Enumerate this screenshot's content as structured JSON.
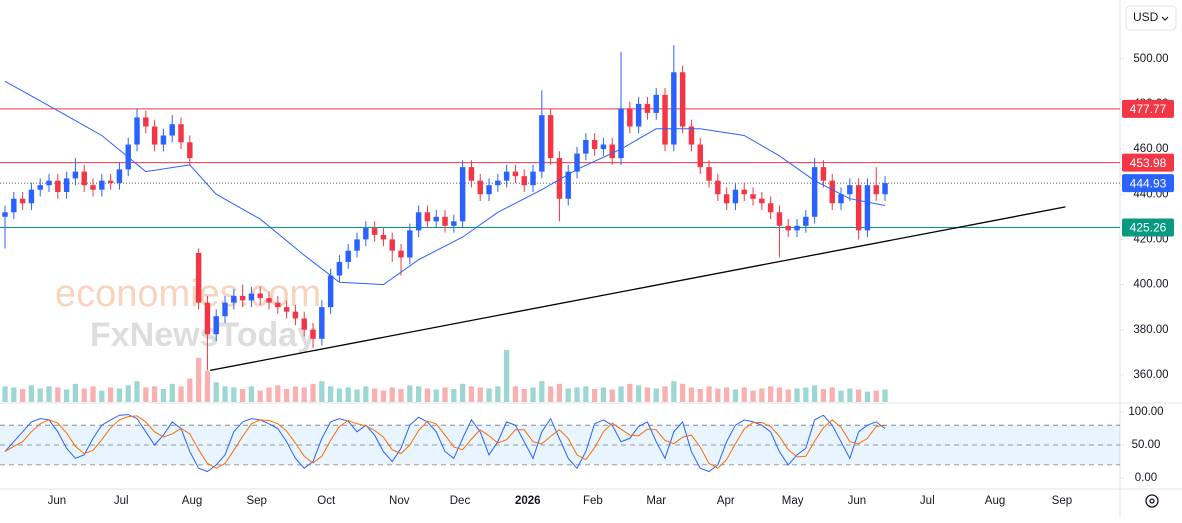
{
  "chart_data": {
    "type": "candlestick",
    "currency": "USD",
    "watermark": [
      "economies.com",
      "FxNewsToday"
    ],
    "colors": {
      "up": "#2962ff",
      "down": "#f23645"
    },
    "xlim": [
      -0.57,
      126.7
    ],
    "xticks": [
      {
        "value": 5.9,
        "label": "Jun"
      },
      {
        "value": 13.2,
        "label": "Jul"
      },
      {
        "value": 21.25,
        "label": "Aug"
      },
      {
        "value": 28.6,
        "label": "Sep"
      },
      {
        "value": 36.5,
        "label": "Oct"
      },
      {
        "value": 44.8,
        "label": "Nov"
      },
      {
        "value": 51.7,
        "label": "Dec"
      },
      {
        "value": 59.4,
        "label": "2026"
      },
      {
        "value": 66.8,
        "label": "Feb"
      },
      {
        "value": 74,
        "label": "Mar"
      },
      {
        "value": 81.9,
        "label": "Apr"
      },
      {
        "value": 89.5,
        "label": "May"
      },
      {
        "value": 96.8,
        "label": "Jun"
      },
      {
        "value": 104.8,
        "label": "Jul"
      },
      {
        "value": 112.5,
        "label": "Aug"
      },
      {
        "value": 120.1,
        "label": "Sep"
      }
    ],
    "ylim": [
      348,
      526
    ],
    "yticks": [
      {
        "value": 360,
        "label": "360.00"
      },
      {
        "value": 380,
        "label": "380.00"
      },
      {
        "value": 400,
        "label": "400.00"
      },
      {
        "value": 420,
        "label": "420.00"
      },
      {
        "value": 440,
        "label": "440.00"
      },
      {
        "value": 460,
        "label": "460.00"
      },
      {
        "value": 480,
        "label": "480.00"
      },
      {
        "value": 500,
        "label": "500.00"
      }
    ],
    "candles": {
      "open": [
        430,
        432,
        438,
        436,
        442,
        444,
        446,
        441,
        447,
        450,
        444,
        442,
        446,
        445,
        451,
        462,
        474,
        470,
        462,
        466,
        471,
        463,
        414,
        392,
        378,
        386,
        392,
        395,
        393,
        396,
        394,
        392,
        390,
        388,
        385,
        380,
        376,
        390,
        404,
        410,
        415,
        420,
        425,
        422,
        420,
        415,
        412,
        424,
        432,
        428,
        430,
        426,
        428,
        452,
        446,
        440,
        444,
        446,
        450,
        448,
        444,
        450,
        475,
        456,
        438,
        450,
        458,
        464,
        460,
        462,
        456,
        478,
        470,
        480,
        476,
        484,
        462,
        494,
        470,
        462,
        452,
        446,
        440,
        436,
        442,
        440,
        438,
        436,
        432,
        426,
        424,
        426,
        430,
        452,
        446,
        436,
        440,
        444,
        424,
        444,
        440
      ],
      "high": [
        435,
        441,
        441,
        445,
        447,
        449,
        449,
        450,
        456,
        453,
        447,
        449,
        449,
        454,
        465,
        478,
        477,
        473,
        469,
        475,
        474,
        466,
        416,
        395,
        389,
        395,
        398,
        400,
        399,
        399,
        397,
        395,
        393,
        391,
        388,
        383,
        393,
        407,
        413,
        418,
        423,
        428,
        428,
        425,
        423,
        418,
        427,
        435,
        435,
        433,
        433,
        431,
        455,
        455,
        449,
        447,
        449,
        453,
        453,
        451,
        453,
        486,
        478,
        459,
        453,
        461,
        467,
        467,
        465,
        465,
        503,
        481,
        483,
        483,
        487,
        487,
        506,
        497,
        473,
        465,
        455,
        449,
        443,
        445,
        445,
        443,
        441,
        439,
        435,
        429,
        429,
        433,
        456,
        455,
        449,
        443,
        447,
        447,
        447,
        452,
        448
      ],
      "low": [
        416,
        429,
        433,
        433,
        439,
        441,
        438,
        438,
        444,
        441,
        439,
        439,
        442,
        442,
        448,
        459,
        467,
        459,
        459,
        463,
        460,
        453,
        389,
        362,
        375,
        383,
        389,
        390,
        390,
        391,
        389,
        387,
        385,
        382,
        377,
        372,
        373,
        387,
        401,
        407,
        412,
        417,
        419,
        417,
        410,
        404,
        409,
        421,
        425,
        425,
        423,
        423,
        425,
        443,
        437,
        437,
        441,
        443,
        445,
        441,
        441,
        447,
        453,
        428,
        435,
        447,
        455,
        457,
        457,
        453,
        453,
        467,
        467,
        473,
        473,
        459,
        459,
        467,
        459,
        449,
        443,
        437,
        433,
        433,
        437,
        435,
        433,
        429,
        412,
        421,
        421,
        423,
        427,
        443,
        433,
        433,
        437,
        420,
        421,
        437,
        437
      ],
      "close": [
        432,
        438,
        436,
        442,
        444,
        446,
        441,
        447,
        450,
        444,
        442,
        446,
        445,
        451,
        462,
        474,
        470,
        462,
        466,
        471,
        463,
        456,
        392,
        378,
        386,
        392,
        395,
        393,
        396,
        394,
        392,
        390,
        388,
        385,
        380,
        376,
        390,
        404,
        410,
        415,
        420,
        425,
        422,
        420,
        415,
        412,
        424,
        432,
        428,
        430,
        426,
        428,
        452,
        446,
        440,
        444,
        446,
        450,
        448,
        444,
        450,
        475,
        456,
        438,
        450,
        458,
        464,
        460,
        462,
        456,
        478,
        470,
        480,
        476,
        484,
        462,
        494,
        470,
        462,
        452,
        446,
        440,
        436,
        442,
        440,
        438,
        436,
        432,
        426,
        424,
        426,
        430,
        452,
        446,
        436,
        440,
        444,
        424,
        444,
        440,
        444.93
      ]
    },
    "volume": [
      30,
      28,
      25,
      32,
      26,
      30,
      28,
      24,
      35,
      26,
      30,
      22,
      28,
      26,
      32,
      40,
      28,
      30,
      25,
      35,
      30,
      45,
      85,
      60,
      38,
      30,
      28,
      25,
      30,
      22,
      28,
      32,
      25,
      30,
      28,
      35,
      40,
      30,
      26,
      28,
      24,
      30,
      26,
      22,
      28,
      25,
      32,
      30,
      26,
      24,
      28,
      25,
      35,
      30,
      28,
      26,
      30,
      100,
      30,
      25,
      28,
      40,
      30,
      35,
      26,
      28,
      30,
      25,
      28,
      24,
      30,
      35,
      32,
      28,
      26,
      30,
      40,
      35,
      28,
      25,
      30,
      26,
      28,
      24,
      28,
      22,
      26,
      30,
      28,
      24,
      26,
      28,
      32,
      25,
      28,
      22,
      26,
      24,
      20,
      22,
      24
    ],
    "moving_average": {
      "color": "#2962ff",
      "x": [
        0,
        6,
        11,
        16,
        21,
        24,
        29,
        34,
        38,
        43,
        47,
        52,
        56,
        61,
        65,
        70,
        74,
        79,
        84,
        88,
        92,
        96,
        100
      ],
      "values": [
        490,
        477,
        466,
        450,
        453,
        440,
        429,
        413,
        401,
        400,
        411,
        421,
        432,
        442,
        451,
        460,
        469,
        469,
        466,
        457,
        446,
        438,
        435
      ]
    },
    "trendline": {
      "color": "#000000",
      "x": [
        23.3,
        120.5
      ],
      "values": [
        362,
        434.4
      ]
    },
    "price_lines": [
      {
        "value": 477.77,
        "color": "#f23645",
        "style": "solid"
      },
      {
        "value": 453.98,
        "color": "#f23645",
        "style": "solid"
      },
      {
        "value": 444.93,
        "color": "#2962ff",
        "style": "dotted"
      },
      {
        "value": 425.26,
        "color": "#089981",
        "style": "solid"
      }
    ],
    "stochastic": {
      "ylim": [
        -21,
        112
      ],
      "yticks": [
        {
          "value": 0,
          "label": "0.00"
        },
        {
          "value": 50,
          "label": "50.00"
        },
        {
          "value": 100,
          "label": "100.00"
        }
      ],
      "bands": [
        20,
        50,
        80
      ],
      "series": [
        {
          "color": "#2962ff",
          "values": [
            40,
            55,
            70,
            85,
            90,
            88,
            70,
            45,
            30,
            35,
            60,
            80,
            88,
            95,
            96,
            90,
            70,
            50,
            65,
            85,
            75,
            40,
            15,
            10,
            20,
            35,
            70,
            85,
            90,
            88,
            82,
            75,
            55,
            30,
            15,
            25,
            60,
            85,
            90,
            86,
            70,
            80,
            65,
            40,
            25,
            45,
            80,
            92,
            85,
            70,
            40,
            30,
            60,
            88,
            70,
            35,
            55,
            85,
            80,
            55,
            30,
            70,
            90,
            60,
            30,
            15,
            40,
            82,
            88,
            80,
            55,
            60,
            78,
            85,
            55,
            30,
            70,
            85,
            40,
            15,
            10,
            20,
            55,
            80,
            88,
            85,
            80,
            70,
            40,
            20,
            35,
            45,
            88,
            95,
            80,
            55,
            30,
            70,
            80,
            85,
            75
          ]
        },
        {
          "color": "#ff6d00",
          "values": [
            40,
            48,
            55,
            70,
            82,
            88,
            83,
            68,
            48,
            37,
            42,
            58,
            76,
            88,
            93,
            94,
            85,
            70,
            62,
            67,
            75,
            67,
            43,
            22,
            15,
            22,
            42,
            63,
            82,
            88,
            87,
            82,
            71,
            53,
            33,
            23,
            33,
            57,
            78,
            87,
            82,
            79,
            72,
            62,
            43,
            37,
            50,
            72,
            86,
            82,
            65,
            47,
            43,
            59,
            73,
            64,
            53,
            58,
            73,
            73,
            55,
            52,
            63,
            73,
            60,
            35,
            28,
            46,
            70,
            83,
            74,
            65,
            64,
            74,
            73,
            57,
            52,
            62,
            65,
            47,
            22,
            15,
            28,
            52,
            74,
            84,
            84,
            78,
            63,
            43,
            32,
            33,
            56,
            76,
            88,
            77,
            55,
            52,
            60,
            78,
            80
          ]
        }
      ]
    }
  }
}
